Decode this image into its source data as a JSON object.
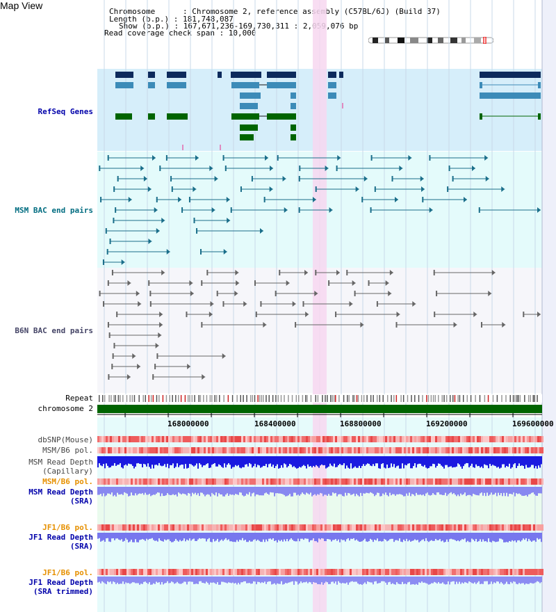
{
  "map_title": "Map View",
  "info": {
    "chromosome_line": "Chromosome      : Chromosome 2, reference assembly (C57BL/6J) (Build 37)",
    "length_line": "Length (b.p.) : 181,748,087",
    "show_line": "Show (b.p.) : 167,671,236-169,730,311 : 2,059,076 bp",
    "coverage_line": "Read coverage check span : 10,000"
  },
  "tracks": {
    "refseq_label": "RefSeq Genes",
    "msm_bac_label": "MSM BAC end pairs",
    "b6n_bac_label": "B6N BAC end pairs",
    "repeat_label": "Repeat",
    "chromosome_label": "chromosome 2",
    "dbsnp_label": "dbSNP(Mouse)",
    "msm_b6_pol_label": "MSM/B6 pol.",
    "msm_read_depth_cap_label_1": "MSM Read Depth",
    "msm_read_depth_cap_label_2": "(Capillary)",
    "msm_b6_pol2_label": "MSM/B6 pol.",
    "msm_read_depth_sra_label_1": "MSM Read Depth",
    "msm_read_depth_sra_label_2": "(SRA)",
    "jf1_b6_pol_label": "JF1/B6 pol.",
    "jf1_read_depth_sra_label_1": "JF1 Read Depth",
    "jf1_read_depth_sra_label_2": "(SRA)",
    "jf1_b6_pol2_label": "JF1/B6 pol.",
    "jf1_read_depth_trim_label_1": "JF1 Read Depth",
    "jf1_read_depth_trim_label_2": "(SRA trimmed)"
  },
  "axis_ticks": [
    "168000000",
    "168400000",
    "168800000",
    "169200000",
    "169600000"
  ],
  "colors": {
    "refseq_bg": "#d6eefa",
    "msm_bg": "#e4fbfb",
    "b6n_bg": "#f6f6fa",
    "highlight": "#f7d7f0",
    "chromosome_bar": "#006400",
    "label_blue": "#0000aa",
    "label_teal": "#006c80",
    "label_gray": "#444466",
    "label_orange": "#e69000"
  },
  "icons": {
    "ideogram": "chromosome-ideogram-icon"
  }
}
